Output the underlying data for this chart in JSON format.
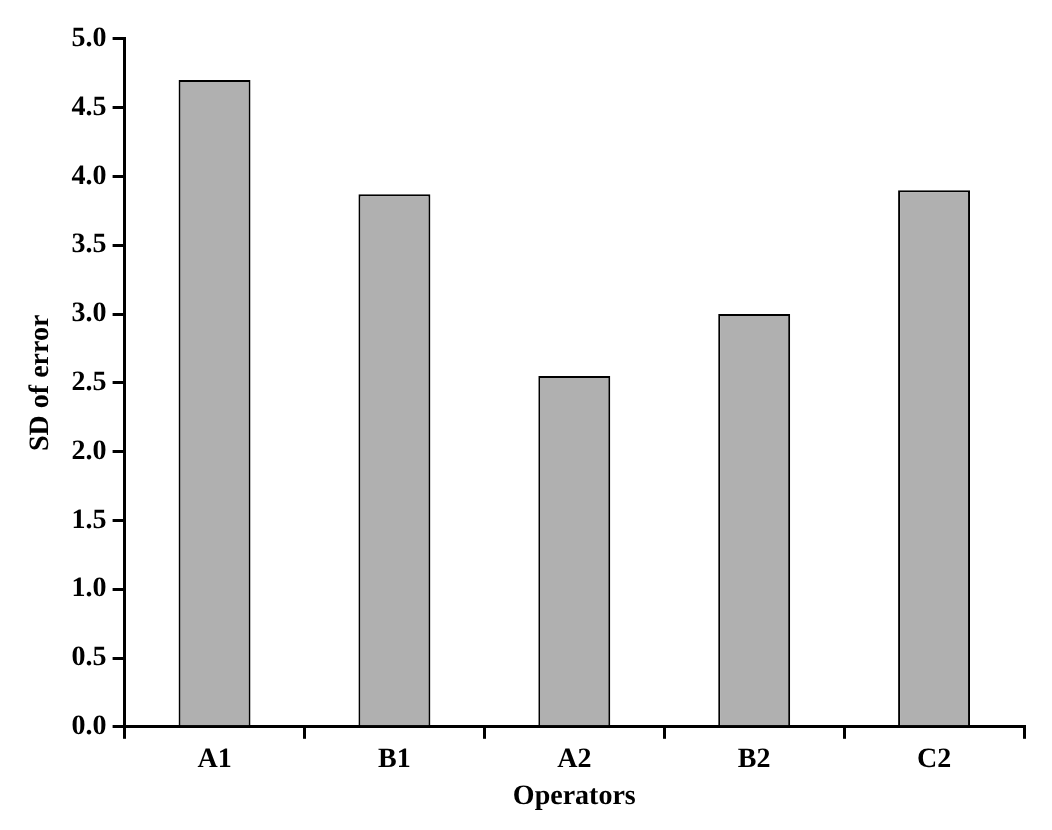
{
  "chart_data": {
    "type": "bar",
    "xlabel": "Operators",
    "ylabel": "SD of error",
    "categories": [
      "A1",
      "B1",
      "A2",
      "B2",
      "C2"
    ],
    "values": [
      4.7,
      3.87,
      2.55,
      3.0,
      3.9
    ],
    "color": "#b0b0b0",
    "ylim": [
      0,
      5
    ],
    "yticks": [
      {
        "value": 0,
        "label": "0.0"
      },
      0.5,
      {
        "value": 1,
        "label": "1.0"
      },
      1.5,
      {
        "value": 2,
        "label": "2.0"
      },
      2.5,
      {
        "value": 3,
        "label": "3.0"
      },
      3.5,
      {
        "value": 4,
        "label": "4.0"
      },
      4.5,
      {
        "value": 5,
        "label": "5.0"
      }
    ]
  }
}
